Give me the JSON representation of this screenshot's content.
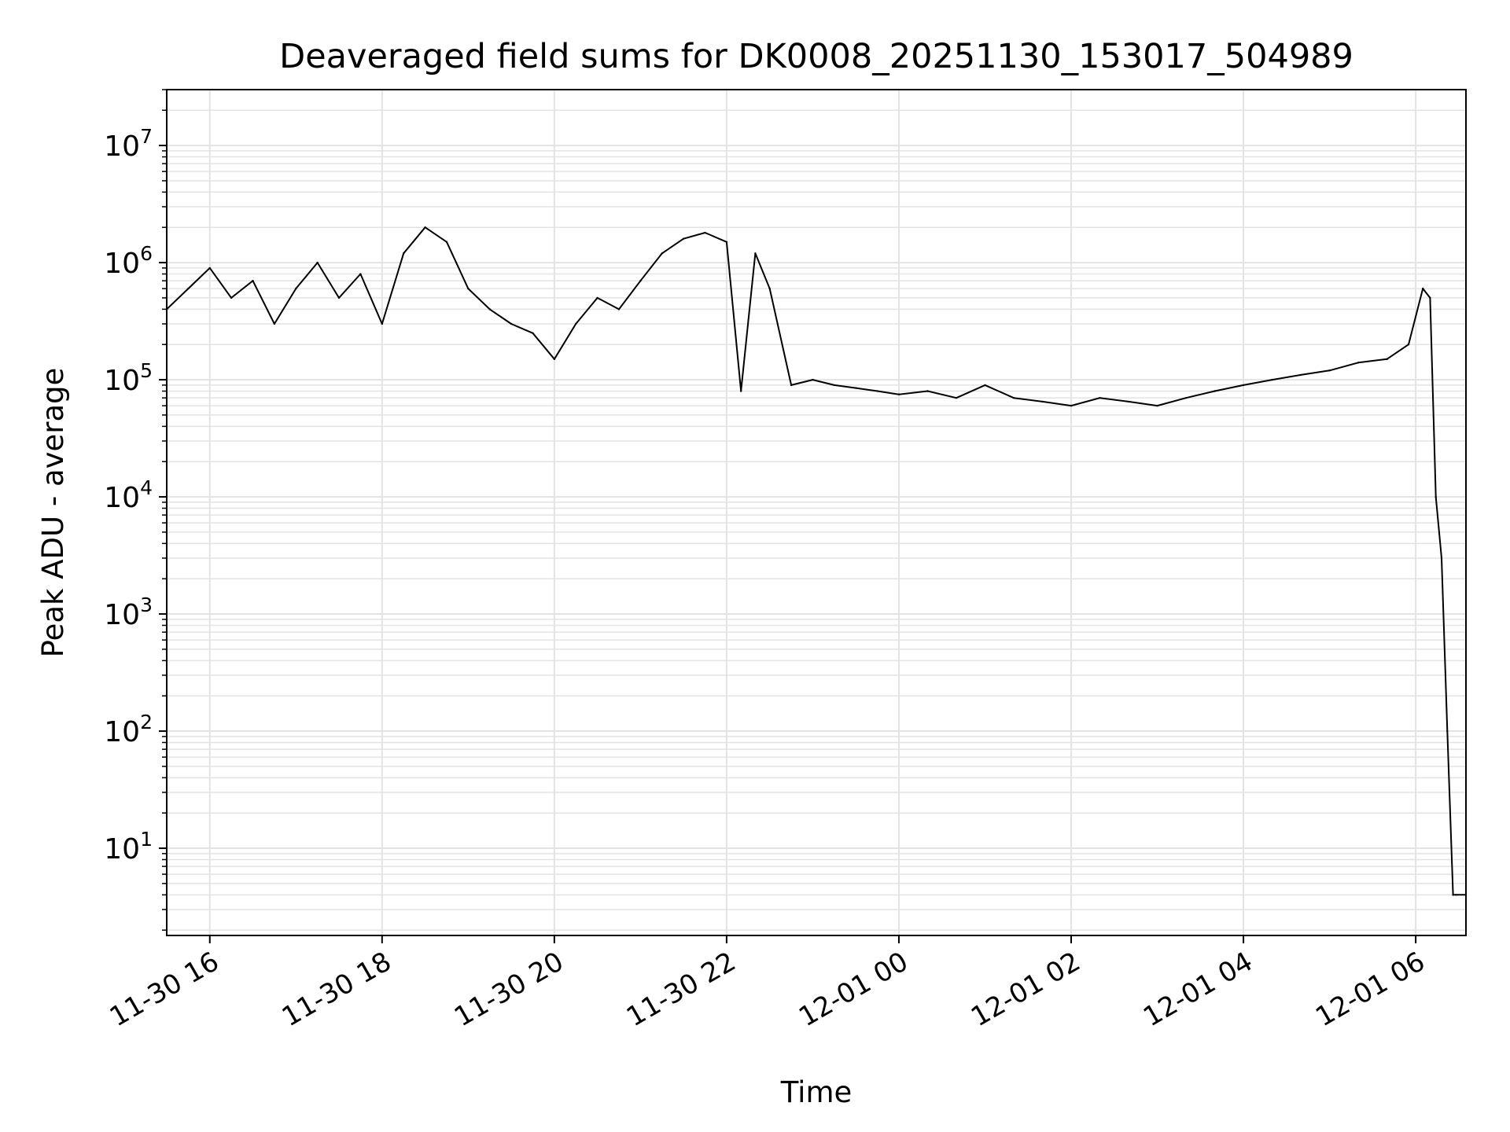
{
  "chart_data": {
    "type": "line",
    "title": "Deaveraged field sums for DK0008_20251130_153017_504989",
    "xlabel": "Time",
    "ylabel": "Peak ADU - average",
    "yscale": "log",
    "ylim": [
      1.8,
      30000000
    ],
    "xlim": [
      "2025-11-30 15:30",
      "2025-12-01 06:35"
    ],
    "grid": true,
    "line_color": "#000000",
    "grid_color": "#e3e3e3",
    "x_ticks": [
      {
        "value": "2025-11-30 16:00",
        "label": "11-30 16"
      },
      {
        "value": "2025-11-30 18:00",
        "label": "11-30 18"
      },
      {
        "value": "2025-11-30 20:00",
        "label": "11-30 20"
      },
      {
        "value": "2025-11-30 22:00",
        "label": "11-30 22"
      },
      {
        "value": "2025-12-01 00:00",
        "label": "12-01 00"
      },
      {
        "value": "2025-12-01 02:00",
        "label": "12-01 02"
      },
      {
        "value": "2025-12-01 04:00",
        "label": "12-01 04"
      },
      {
        "value": "2025-12-01 06:00",
        "label": "12-01 06"
      }
    ],
    "y_ticks": [
      {
        "value": 10,
        "base": "10",
        "exp": "1"
      },
      {
        "value": 100,
        "base": "10",
        "exp": "2"
      },
      {
        "value": 1000,
        "base": "10",
        "exp": "3"
      },
      {
        "value": 10000,
        "base": "10",
        "exp": "4"
      },
      {
        "value": 100000,
        "base": "10",
        "exp": "5"
      },
      {
        "value": 1000000,
        "base": "10",
        "exp": "6"
      },
      {
        "value": 10000000,
        "base": "10",
        "exp": "7"
      }
    ],
    "series": [
      {
        "x": [
          "2025-11-30 15:30",
          "2025-11-30 15:45",
          "2025-11-30 16:00",
          "2025-11-30 16:15",
          "2025-11-30 16:30",
          "2025-11-30 16:45",
          "2025-11-30 17:00",
          "2025-11-30 17:15",
          "2025-11-30 17:30",
          "2025-11-30 17:45",
          "2025-11-30 18:00",
          "2025-11-30 18:15",
          "2025-11-30 18:30",
          "2025-11-30 18:45",
          "2025-11-30 19:00",
          "2025-11-30 19:15",
          "2025-11-30 19:30",
          "2025-11-30 19:45",
          "2025-11-30 20:00",
          "2025-11-30 20:15",
          "2025-11-30 20:30",
          "2025-11-30 20:45",
          "2025-11-30 21:00",
          "2025-11-30 21:15",
          "2025-11-30 21:30",
          "2025-11-30 21:45",
          "2025-11-30 22:00",
          "2025-11-30 22:10",
          "2025-11-30 22:20",
          "2025-11-30 22:30",
          "2025-11-30 22:45",
          "2025-11-30 23:00",
          "2025-11-30 23:15",
          "2025-11-30 23:30",
          "2025-11-30 23:45",
          "2025-12-01 00:00",
          "2025-12-01 00:20",
          "2025-12-01 00:40",
          "2025-12-01 01:00",
          "2025-12-01 01:20",
          "2025-12-01 01:40",
          "2025-12-01 02:00",
          "2025-12-01 02:20",
          "2025-12-01 02:40",
          "2025-12-01 03:00",
          "2025-12-01 03:20",
          "2025-12-01 03:40",
          "2025-12-01 04:00",
          "2025-12-01 04:20",
          "2025-12-01 04:40",
          "2025-12-01 05:00",
          "2025-12-01 05:20",
          "2025-12-01 05:40",
          "2025-12-01 05:55",
          "2025-12-01 06:05",
          "2025-12-01 06:10",
          "2025-12-01 06:14",
          "2025-12-01 06:18",
          "2025-12-01 06:22",
          "2025-12-01 06:26",
          "2025-12-01 06:28",
          "2025-12-01 06:35"
        ],
        "y": [
          400000,
          600000,
          900000,
          500000,
          700000,
          300000,
          600000,
          1000000,
          500000,
          800000,
          300000,
          1200000,
          2000000,
          1500000,
          600000,
          400000,
          300000,
          250000,
          150000,
          300000,
          500000,
          400000,
          700000,
          1200000,
          1600000,
          1800000,
          1500000,
          80000,
          1200000,
          600000,
          90000,
          100000,
          90000,
          85000,
          80000,
          75000,
          80000,
          70000,
          90000,
          70000,
          65000,
          60000,
          70000,
          65000,
          60000,
          70000,
          80000,
          90000,
          100000,
          110000,
          120000,
          140000,
          150000,
          200000,
          600000,
          500000,
          10000,
          3000,
          100,
          4,
          4,
          4
        ]
      }
    ]
  }
}
